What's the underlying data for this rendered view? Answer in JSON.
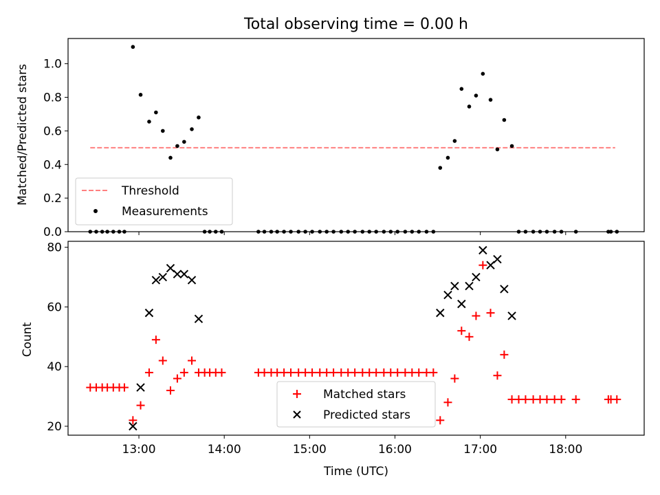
{
  "chart_data": [
    {
      "type": "scatter",
      "title": "Total observing time = 0.00 h",
      "ylabel": "Matched/Predicted stars",
      "xlabel": "",
      "xlim": [
        12.17,
        18.92
      ],
      "ylim": [
        0.0,
        1.15
      ],
      "yticks": [
        0.0,
        0.2,
        0.4,
        0.6,
        0.8,
        1.0
      ],
      "ytick_labels": [
        "0.0",
        "0.2",
        "0.4",
        "0.6",
        "0.8",
        "1.0"
      ],
      "grid": false,
      "legend_placement": "lower-left",
      "threshold": {
        "name": "Threshold",
        "y": 0.5,
        "x": [
          12.43,
          18.58
        ],
        "color": "#ff7f7f",
        "style": "dashed"
      },
      "series": [
        {
          "name": "Measurements",
          "marker": "dot",
          "color": "#000000",
          "x": [
            12.43,
            12.5,
            12.57,
            12.63,
            12.7,
            12.77,
            12.83,
            12.93,
            13.02,
            13.12,
            13.2,
            13.28,
            13.37,
            13.45,
            13.53,
            13.62,
            13.7,
            13.77,
            13.83,
            13.9,
            13.97,
            14.4,
            14.47,
            14.55,
            14.62,
            14.7,
            14.78,
            14.87,
            14.95,
            15.03,
            15.12,
            15.2,
            15.28,
            15.37,
            15.45,
            15.53,
            15.62,
            15.7,
            15.78,
            15.87,
            15.95,
            16.03,
            16.12,
            16.2,
            16.28,
            16.37,
            16.45,
            16.53,
            16.62,
            16.7,
            16.78,
            16.87,
            16.95,
            17.03,
            17.12,
            17.2,
            17.28,
            17.37,
            17.45,
            17.53,
            17.62,
            17.7,
            17.78,
            17.87,
            17.95,
            18.12,
            18.5,
            18.53,
            18.6
          ],
          "y": [
            0,
            0,
            0,
            0,
            0,
            0,
            0,
            1.1,
            0.815,
            0.655,
            0.71,
            0.6,
            0.44,
            0.51,
            0.535,
            0.61,
            0.68,
            0,
            0,
            0,
            0,
            0,
            0,
            0,
            0,
            0,
            0,
            0,
            0,
            0,
            0,
            0,
            0,
            0,
            0,
            0,
            0,
            0,
            0,
            0,
            0,
            0,
            0,
            0,
            0,
            0,
            0,
            0.38,
            0.44,
            0.54,
            0.85,
            0.745,
            0.81,
            0.94,
            0.785,
            0.49,
            0.665,
            0.51,
            0,
            0,
            0,
            0,
            0,
            0,
            0,
            0,
            0,
            0,
            0
          ]
        }
      ]
    },
    {
      "type": "scatter",
      "title": "",
      "ylabel": "Count",
      "xlabel": "Time (UTC)",
      "xlim": [
        12.17,
        18.92
      ],
      "ylim": [
        17,
        82
      ],
      "yticks": [
        20,
        40,
        60,
        80
      ],
      "ytick_labels": [
        "20",
        "40",
        "60",
        "80"
      ],
      "xticks": [
        13,
        14,
        15,
        16,
        17,
        18
      ],
      "xtick_labels": [
        "13:00",
        "14:00",
        "15:00",
        "16:00",
        "17:00",
        "18:00"
      ],
      "grid": false,
      "legend_placement": "lower-center",
      "series": [
        {
          "name": "Matched stars",
          "marker": "plus",
          "color": "#ff0000",
          "x": [
            12.43,
            12.5,
            12.57,
            12.63,
            12.7,
            12.77,
            12.83,
            12.93,
            13.02,
            13.12,
            13.2,
            13.28,
            13.37,
            13.45,
            13.53,
            13.62,
            13.7,
            13.77,
            13.83,
            13.9,
            13.97,
            14.4,
            14.47,
            14.55,
            14.62,
            14.7,
            14.78,
            14.87,
            14.95,
            15.03,
            15.12,
            15.2,
            15.28,
            15.37,
            15.45,
            15.53,
            15.62,
            15.7,
            15.78,
            15.87,
            15.95,
            16.03,
            16.12,
            16.2,
            16.28,
            16.37,
            16.45,
            16.53,
            16.62,
            16.7,
            16.78,
            16.87,
            16.95,
            17.03,
            17.12,
            17.2,
            17.28,
            17.37,
            17.45,
            17.53,
            17.62,
            17.7,
            17.78,
            17.87,
            17.95,
            18.12,
            18.5,
            18.53,
            18.6
          ],
          "y": [
            33,
            33,
            33,
            33,
            33,
            33,
            33,
            22,
            27,
            38,
            49,
            42,
            32,
            36,
            38,
            42,
            38,
            38,
            38,
            38,
            38,
            38,
            38,
            38,
            38,
            38,
            38,
            38,
            38,
            38,
            38,
            38,
            38,
            38,
            38,
            38,
            38,
            38,
            38,
            38,
            38,
            38,
            38,
            38,
            38,
            38,
            38,
            22,
            28,
            36,
            52,
            50,
            57,
            74,
            58,
            37,
            44,
            29,
            29,
            29,
            29,
            29,
            29,
            29,
            29,
            29,
            29,
            29,
            29
          ]
        },
        {
          "name": "Predicted stars",
          "marker": "x",
          "color": "#000000",
          "x": [
            12.93,
            13.02,
            13.12,
            13.2,
            13.28,
            13.37,
            13.45,
            13.53,
            13.62,
            13.7,
            16.53,
            16.62,
            16.7,
            16.78,
            16.87,
            16.95,
            17.03,
            17.12,
            17.2,
            17.28,
            17.37
          ],
          "y": [
            20,
            33,
            58,
            69,
            70,
            73,
            71,
            71,
            69,
            56,
            58,
            64,
            67,
            61,
            67,
            70,
            79,
            74,
            76,
            66,
            57
          ]
        }
      ]
    }
  ]
}
